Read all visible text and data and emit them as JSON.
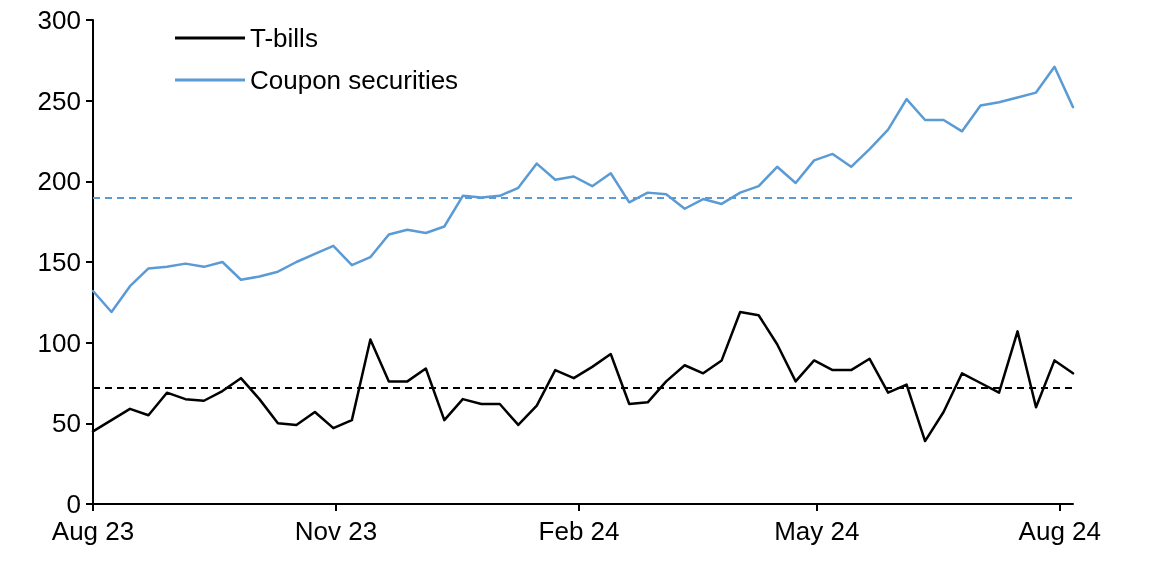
{
  "chart_data": {
    "type": "line",
    "x": [
      "2023-08-01",
      "2023-08-08",
      "2023-08-15",
      "2023-08-22",
      "2023-08-29",
      "2023-09-05",
      "2023-09-12",
      "2023-09-19",
      "2023-09-26",
      "2023-10-03",
      "2023-10-10",
      "2023-10-17",
      "2023-10-24",
      "2023-10-31",
      "2023-11-07",
      "2023-11-14",
      "2023-11-21",
      "2023-11-28",
      "2023-12-05",
      "2023-12-12",
      "2023-12-19",
      "2023-12-26",
      "2024-01-02",
      "2024-01-09",
      "2024-01-16",
      "2024-01-23",
      "2024-01-30",
      "2024-02-06",
      "2024-02-13",
      "2024-02-20",
      "2024-02-27",
      "2024-03-05",
      "2024-03-12",
      "2024-03-19",
      "2024-03-26",
      "2024-04-02",
      "2024-04-09",
      "2024-04-16",
      "2024-04-23",
      "2024-04-30",
      "2024-05-07",
      "2024-05-14",
      "2024-05-21",
      "2024-05-28",
      "2024-06-04",
      "2024-06-11",
      "2024-06-18",
      "2024-06-25",
      "2024-07-02",
      "2024-07-09",
      "2024-07-16",
      "2024-07-23",
      "2024-07-30",
      "2024-08-06"
    ],
    "series": [
      {
        "name": "T-bills",
        "color": "#000000",
        "values": [
          45,
          52,
          59,
          55,
          69,
          65,
          64,
          70,
          78,
          65,
          50,
          49,
          57,
          47,
          52,
          102,
          76,
          76,
          84,
          52,
          65,
          62,
          62,
          49,
          61,
          83,
          78,
          85,
          93,
          62,
          63,
          76,
          86,
          81,
          89,
          119,
          117,
          99,
          76,
          89,
          83,
          83,
          90,
          69,
          74,
          39,
          57,
          81,
          75,
          69,
          107,
          60,
          89,
          81
        ]
      },
      {
        "name": "Coupon securities",
        "color": "#5b9bd5",
        "values": [
          132,
          119,
          135,
          146,
          147,
          149,
          147,
          150,
          139,
          141,
          144,
          150,
          155,
          160,
          148,
          153,
          167,
          170,
          168,
          172,
          191,
          190,
          191,
          196,
          211,
          201,
          203,
          197,
          205,
          187,
          193,
          192,
          183,
          189,
          186,
          193,
          197,
          209,
          199,
          213,
          217,
          209,
          220,
          232,
          251,
          238,
          238,
          231,
          247,
          249,
          252,
          255,
          271,
          246
        ]
      }
    ],
    "ref_lines": [
      {
        "axis": "y",
        "value": 190,
        "color": "#5b9bd5",
        "line_style": "dashed"
      },
      {
        "axis": "y",
        "value": 72,
        "color": "#000000",
        "line_style": "dashed"
      }
    ],
    "xlim": [
      "2023-08-01",
      "2024-08-06"
    ],
    "xticks": [
      {
        "value": "2023-08-01",
        "label": "Aug 23"
      },
      {
        "value": "2023-11-01",
        "label": "Nov 23"
      },
      {
        "value": "2024-02-01",
        "label": "Feb 24"
      },
      {
        "value": "2024-05-01",
        "label": "May 24"
      },
      {
        "value": "2024-08-01",
        "label": "Aug 24"
      }
    ],
    "ylim": [
      0,
      300
    ],
    "yticks": [
      0,
      50,
      100,
      150,
      200,
      250,
      300
    ],
    "grid": false,
    "legend": "top left",
    "marker": "none",
    "line_style": "solid"
  }
}
